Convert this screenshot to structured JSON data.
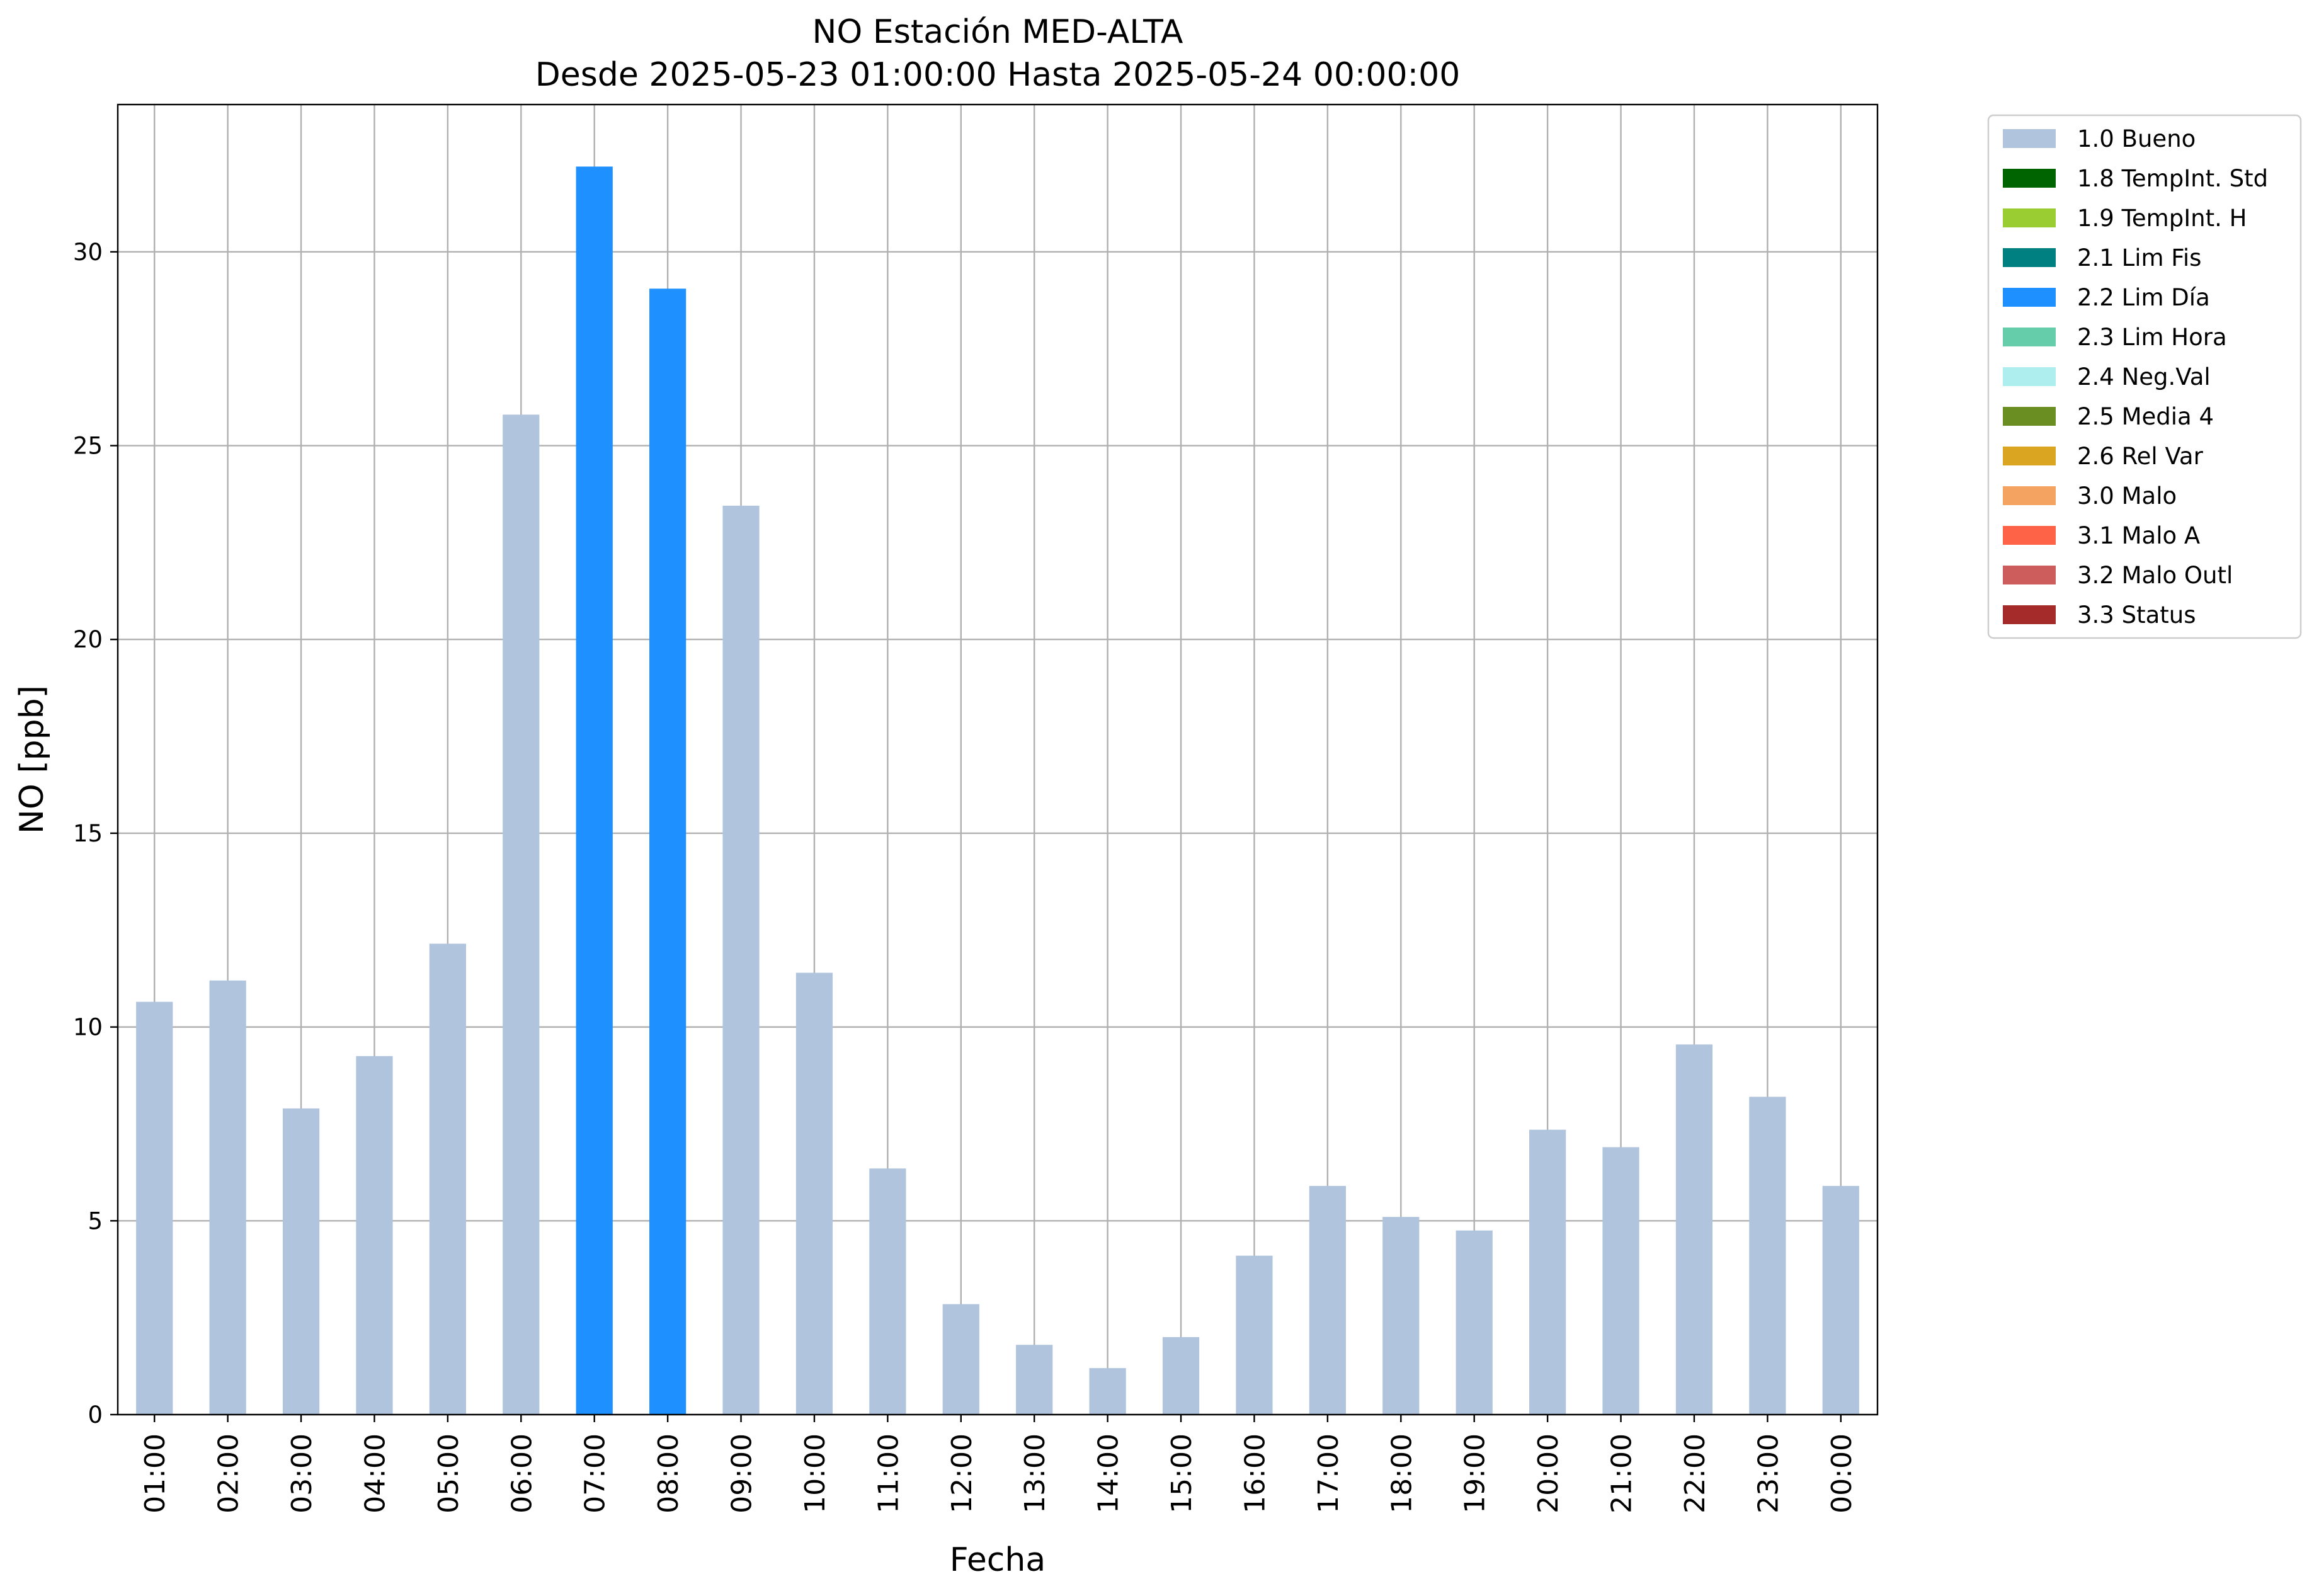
{
  "chart_data": {
    "type": "bar",
    "title": "NO Estación MED-ALTA",
    "subtitle": "Desde 2025-05-23 01:00:00 Hasta 2025-05-24 00:00:00",
    "xlabel": "Fecha",
    "ylabel": "NO [ppb]",
    "ylim": [
      0,
      33.8
    ],
    "yticks": [
      0,
      5,
      10,
      15,
      20,
      25,
      30
    ],
    "grid": true,
    "legend_position": "outside-top-right",
    "categories": [
      "01:00",
      "02:00",
      "03:00",
      "04:00",
      "05:00",
      "06:00",
      "07:00",
      "08:00",
      "09:00",
      "10:00",
      "11:00",
      "12:00",
      "13:00",
      "14:00",
      "15:00",
      "16:00",
      "17:00",
      "18:00",
      "19:00",
      "20:00",
      "21:00",
      "22:00",
      "23:00",
      "00:00"
    ],
    "values": [
      10.65,
      11.2,
      7.9,
      9.25,
      12.15,
      25.8,
      32.2,
      29.05,
      23.45,
      11.4,
      6.35,
      2.85,
      1.8,
      1.2,
      2.0,
      4.1,
      5.9,
      5.1,
      4.75,
      7.35,
      6.9,
      9.55,
      8.2,
      5.9
    ],
    "flags": [
      "1.0 Bueno",
      "1.0 Bueno",
      "1.0 Bueno",
      "1.0 Bueno",
      "1.0 Bueno",
      "1.0 Bueno",
      "2.2 Lim Día",
      "2.2 Lim Día",
      "1.0 Bueno",
      "1.0 Bueno",
      "1.0 Bueno",
      "1.0 Bueno",
      "1.0 Bueno",
      "1.0 Bueno",
      "1.0 Bueno",
      "1.0 Bueno",
      "1.0 Bueno",
      "1.0 Bueno",
      "1.0 Bueno",
      "1.0 Bueno",
      "1.0 Bueno",
      "1.0 Bueno",
      "1.0 Bueno",
      "1.0 Bueno"
    ],
    "legend": [
      {
        "label": "1.0 Bueno",
        "color": "#b0c4de"
      },
      {
        "label": "1.8 TempInt. Std",
        "color": "#006400"
      },
      {
        "label": "1.9 TempInt. H",
        "color": "#9acd32"
      },
      {
        "label": "2.1 Lim Fis",
        "color": "#008080"
      },
      {
        "label": "2.2 Lim Día",
        "color": "#1e90ff"
      },
      {
        "label": "2.3 Lim Hora",
        "color": "#66cdaa"
      },
      {
        "label": "2.4 Neg.Val",
        "color": "#afeeee"
      },
      {
        "label": "2.5 Media 4",
        "color": "#6b8e23"
      },
      {
        "label": "2.6 Rel Var",
        "color": "#daa520"
      },
      {
        "label": "3.0 Malo",
        "color": "#f4a460"
      },
      {
        "label": "3.1 Malo A",
        "color": "#ff6347"
      },
      {
        "label": "3.2 Malo Outl",
        "color": "#cd5c5c"
      },
      {
        "label": "3.3 Status",
        "color": "#a52a2a"
      }
    ]
  }
}
